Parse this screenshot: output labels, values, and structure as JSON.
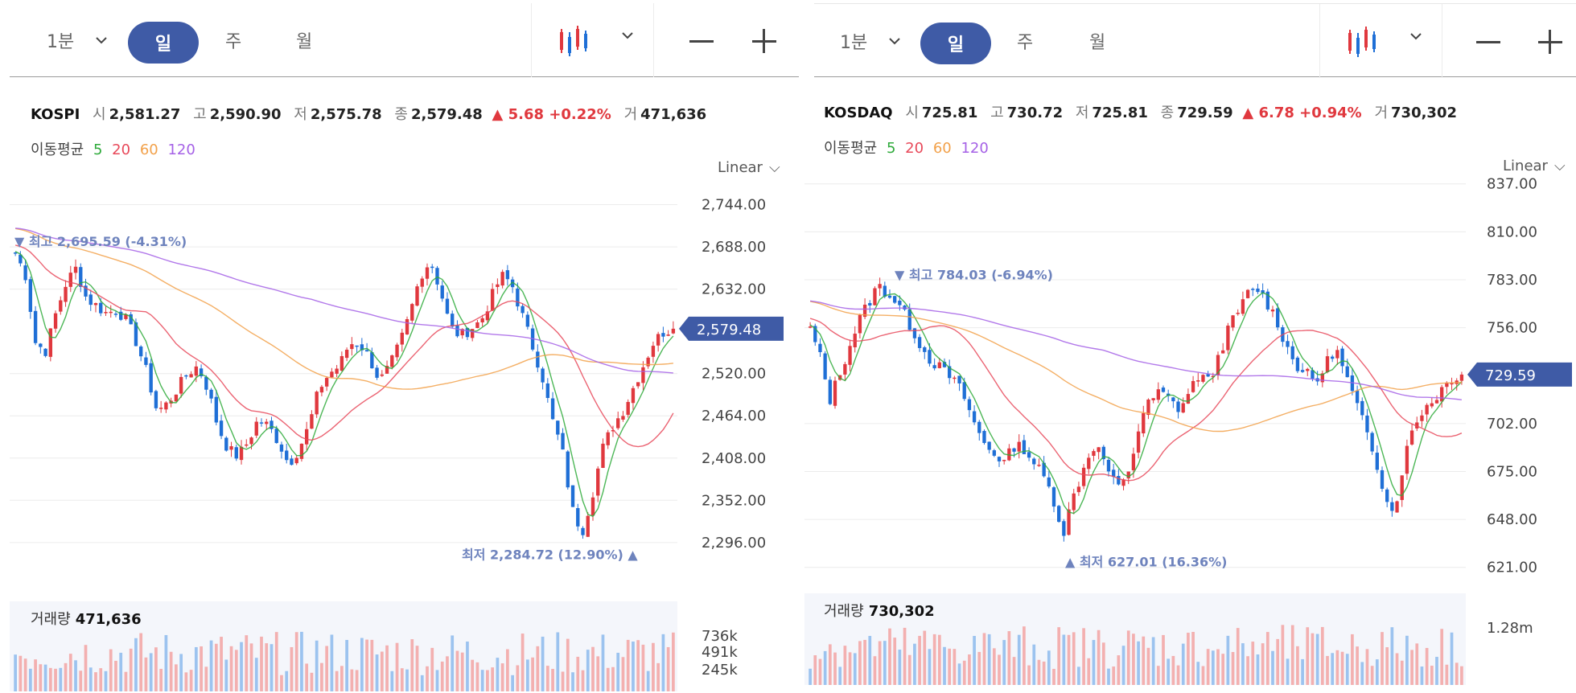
{
  "colors": {
    "accent": "#3f5ba6",
    "up": "#e0383e",
    "down": "#1f6fd6",
    "ma5": "#2eaa3a",
    "ma20": "#e8495a",
    "ma60": "#f2a14a",
    "ma120": "#a561e6",
    "annot": "#6e83bd"
  },
  "panels": [
    {
      "toolbar": {
        "interval": "1분",
        "periods": [
          "일",
          "주",
          "월"
        ],
        "active_period": "일",
        "chart_type_icon": "candlestick-chart-icon",
        "zoom_out": "—",
        "zoom_in": "+"
      },
      "info": {
        "name": "KOSPI",
        "open_label": "시",
        "open": "2,581.27",
        "high_label": "고",
        "high": "2,590.90",
        "low_label": "저",
        "low": "2,575.78",
        "close_label": "종",
        "close": "2,579.48",
        "change": "▲ 5.68 +0.22%",
        "volume_label": "거",
        "volume": "471,636"
      },
      "ma_legend": {
        "label": "이동평균",
        "periods": [
          "5",
          "20",
          "60",
          "120"
        ]
      },
      "scale_label": "Linear",
      "volume": {
        "label": "거래량",
        "value": "471,636",
        "ticks": [
          "736k",
          "491k",
          "245k"
        ]
      },
      "chart_data": {
        "type": "candlestick",
        "title": "KOSPI",
        "ylim": [
          2250,
          2800
        ],
        "y_ticks": [
          "2,744.00",
          "2,688.00",
          "2,632.00",
          "2,520.00",
          "2,464.00",
          "2,408.00",
          "2,352.00",
          "2,296.00"
        ],
        "y_tick_values": [
          2744,
          2688,
          2632,
          2520,
          2464,
          2408,
          2352,
          2296
        ],
        "current_price": "2,579.48",
        "current_value": 2579.48,
        "max_annotation": "최고 2,695.59 (-4.31%)",
        "max_value": 2695.59,
        "min_annotation": "최저 2,284.72 (12.90%)",
        "min_value": 2284.72,
        "close_path": [
          2680,
          2650,
          2560,
          2550,
          2600,
          2640,
          2660,
          2620,
          2610,
          2600,
          2605,
          2590,
          2560,
          2520,
          2470,
          2480,
          2500,
          2520,
          2530,
          2500,
          2450,
          2420,
          2410,
          2430,
          2460,
          2450,
          2430,
          2400,
          2420,
          2450,
          2500,
          2520,
          2530,
          2560,
          2560,
          2540,
          2510,
          2530,
          2560,
          2600,
          2650,
          2670,
          2630,
          2580,
          2570,
          2580,
          2590,
          2620,
          2650,
          2640,
          2600,
          2560,
          2520,
          2460,
          2420,
          2340,
          2310,
          2360,
          2420,
          2450,
          2470,
          2500,
          2530,
          2560,
          2575,
          2579.48
        ],
        "series": [
          {
            "name": "5"
          },
          {
            "name": "20"
          },
          {
            "name": "60"
          },
          {
            "name": "120"
          }
        ]
      }
    },
    {
      "toolbar": {
        "interval": "1분",
        "periods": [
          "일",
          "주",
          "월"
        ],
        "active_period": "일",
        "chart_type_icon": "candlestick-chart-icon",
        "zoom_out": "—",
        "zoom_in": "+"
      },
      "info": {
        "name": "KOSDAQ",
        "open_label": "시",
        "open": "725.81",
        "high_label": "고",
        "high": "730.72",
        "low_label": "저",
        "low": "725.81",
        "close_label": "종",
        "close": "729.59",
        "change": "▲ 6.78 +0.94%",
        "volume_label": "거",
        "volume": "730,302"
      },
      "ma_legend": {
        "label": "이동평균",
        "periods": [
          "5",
          "20",
          "60",
          "120"
        ]
      },
      "scale_label": "Linear",
      "volume": {
        "label": "거래량",
        "value": "730,302",
        "ticks": [
          "1.28m"
        ]
      },
      "chart_data": {
        "type": "candlestick",
        "title": "KOSDAQ",
        "ylim": [
          610,
          850
        ],
        "y_ticks": [
          "837.00",
          "810.00",
          "783.00",
          "756.00",
          "702.00",
          "675.00",
          "648.00",
          "621.00"
        ],
        "y_tick_values": [
          837,
          810,
          783,
          756,
          702,
          675,
          648,
          621
        ],
        "current_price": "729.59",
        "current_value": 729.59,
        "max_annotation": "최고 784.03 (-6.94%)",
        "max_value": 784.03,
        "min_annotation": "최저 627.01 (16.36%)",
        "min_value": 627.01,
        "close_path": [
          755,
          740,
          715,
          730,
          745,
          760,
          770,
          780,
          775,
          770,
          760,
          750,
          740,
          735,
          730,
          725,
          715,
          700,
          690,
          685,
          680,
          690,
          688,
          680,
          672,
          660,
          640,
          660,
          675,
          690,
          685,
          670,
          665,
          680,
          705,
          715,
          720,
          715,
          710,
          720,
          730,
          725,
          740,
          755,
          765,
          775,
          778,
          770,
          760,
          745,
          735,
          730,
          725,
          735,
          745,
          730,
          715,
          700,
          685,
          665,
          650,
          680,
          700,
          710,
          715,
          722,
          728,
          729.59
        ],
        "series": [
          {
            "name": "5"
          },
          {
            "name": "20"
          },
          {
            "name": "60"
          },
          {
            "name": "120"
          }
        ]
      }
    }
  ]
}
